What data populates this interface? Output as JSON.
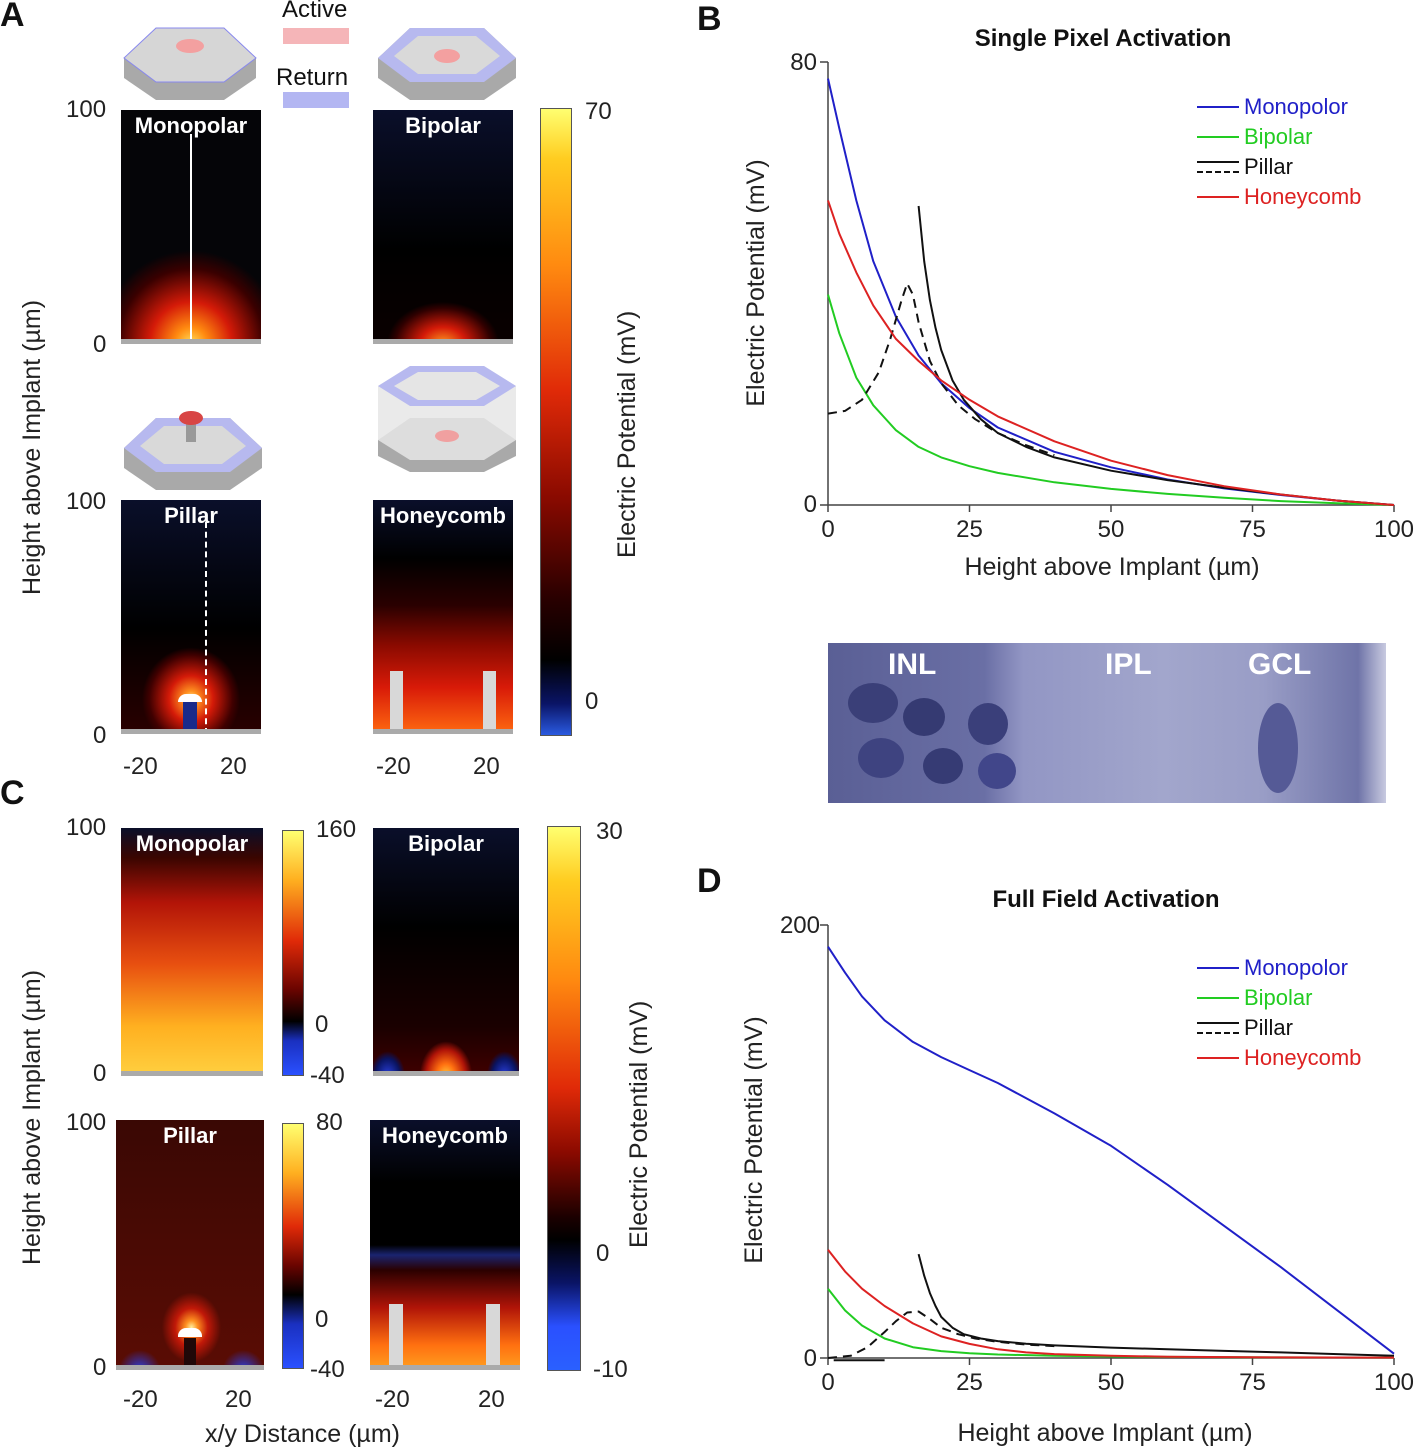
{
  "panels": {
    "a": "A",
    "b": "B",
    "c": "C",
    "d": "D"
  },
  "panel_a": {
    "legend": {
      "active": "Active",
      "return": "Return"
    },
    "heatmaps": [
      "Monopolar",
      "Bipolar",
      "Pillar",
      "Honeycomb"
    ],
    "y_ticks": {
      "top": "100",
      "bottom": "0"
    },
    "x_ticks": [
      "-20",
      "20"
    ],
    "ylabel": "Height above Implant (µm)",
    "colorbar": {
      "max": "70",
      "min": "0",
      "label": "Electric Potential (mV)"
    }
  },
  "panel_c": {
    "heatmaps": [
      "Monopolar",
      "Bipolar",
      "Pillar",
      "Honeycomb"
    ],
    "y_ticks": {
      "top": "100",
      "bottom": "0"
    },
    "x_ticks": [
      "-20",
      "20"
    ],
    "ylabel": "Height above Implant (µm)",
    "xlabel": "x/y Distance (µm)",
    "colorbar_monopolar": {
      "max": "160",
      "zero": "0",
      "min": "-40"
    },
    "colorbar_pillar": {
      "max": "80",
      "zero": "0",
      "min": "-40"
    },
    "colorbar_shared": {
      "max": "30",
      "zero": "0",
      "min": "-10",
      "label": "Electric Potential (mV)"
    }
  },
  "histology": {
    "layers": [
      "INL",
      "IPL",
      "GCL"
    ]
  },
  "colors": {
    "monopolar": "#2020c8",
    "bipolar": "#22cc22",
    "pillar": "#111111",
    "honeycomb": "#dd2222"
  },
  "chart_data": [
    {
      "type": "line",
      "title": "Single Pixel Activation",
      "xlabel": "Height above Implant (µm)",
      "ylabel": "Electric Potential (mV)",
      "xlim": [
        0,
        100
      ],
      "ylim": [
        0,
        80
      ],
      "x_ticks": [
        "0",
        "25",
        "50",
        "75",
        "100"
      ],
      "y_ticks": [
        "0",
        "80"
      ],
      "legend": [
        "Monopolor",
        "Bipolar",
        "Pillar",
        "Honeycomb"
      ],
      "series": [
        {
          "name": "Monopolor",
          "style": "solid",
          "x": [
            0,
            2,
            5,
            8,
            12,
            16,
            20,
            25,
            30,
            40,
            50,
            60,
            70,
            80,
            90,
            100
          ],
          "y": [
            77,
            68,
            55,
            44,
            34,
            27,
            22,
            17.5,
            14,
            9.6,
            6.8,
            4.6,
            3.0,
            1.8,
            0.8,
            0
          ]
        },
        {
          "name": "Bipolar",
          "style": "solid",
          "x": [
            0,
            2,
            5,
            8,
            12,
            16,
            20,
            25,
            30,
            40,
            50,
            60,
            70,
            80,
            90,
            100
          ],
          "y": [
            38,
            31,
            23,
            18,
            13.5,
            10.5,
            8.6,
            7,
            5.8,
            4.1,
            2.9,
            2.0,
            1.3,
            0.7,
            0.3,
            0
          ]
        },
        {
          "name": "Pillar (solid)",
          "style": "solid",
          "x": [
            16,
            17,
            18,
            19,
            20,
            22,
            24,
            27,
            30,
            35,
            40,
            50,
            60,
            70,
            80,
            90,
            100
          ],
          "y": [
            54,
            44,
            37,
            32,
            28,
            22.5,
            19,
            15.5,
            13,
            10.5,
            8.6,
            6.2,
            4.5,
            3.1,
            1.9,
            0.8,
            0
          ]
        },
        {
          "name": "Pillar (dashed)",
          "style": "dashed",
          "x": [
            0,
            3,
            6,
            9,
            11,
            13,
            14,
            15,
            16,
            18,
            20,
            23,
            26,
            30,
            35,
            40
          ],
          "y": [
            16.5,
            17,
            19,
            24,
            30,
            37,
            40,
            38,
            33,
            26,
            22,
            18,
            15.5,
            13,
            10.8,
            9
          ]
        },
        {
          "name": "Honeycomb",
          "style": "solid",
          "x": [
            0,
            2,
            5,
            8,
            12,
            16,
            20,
            25,
            30,
            40,
            50,
            60,
            70,
            80,
            90,
            100
          ],
          "y": [
            55,
            49,
            42,
            36,
            30,
            26,
            22.5,
            19,
            16,
            11.5,
            8,
            5.4,
            3.4,
            1.9,
            0.8,
            0
          ]
        }
      ]
    },
    {
      "type": "line",
      "title": "Full Field Activation",
      "xlabel": "Height above Implant (µm)",
      "ylabel": "Electric Potential (mV)",
      "xlim": [
        0,
        100
      ],
      "ylim": [
        0,
        200
      ],
      "x_ticks": [
        "0",
        "25",
        "50",
        "75",
        "100"
      ],
      "y_ticks": [
        "0",
        "200"
      ],
      "legend": [
        "Monopolor",
        "Bipolar",
        "Pillar",
        "Honeycomb"
      ],
      "series": [
        {
          "name": "Monopolor",
          "style": "solid",
          "x": [
            0,
            3,
            6,
            10,
            15,
            20,
            25,
            30,
            40,
            50,
            60,
            70,
            80,
            90,
            100
          ],
          "y": [
            190,
            178,
            167,
            156,
            146,
            139,
            133,
            127,
            113,
            98,
            80,
            61,
            42,
            22,
            2
          ]
        },
        {
          "name": "Bipolar",
          "style": "solid",
          "x": [
            0,
            3,
            6,
            10,
            15,
            20,
            25,
            30,
            40,
            50,
            60,
            80,
            100
          ],
          "y": [
            32,
            22,
            15,
            9,
            5,
            3.2,
            2.2,
            1.6,
            1.0,
            0.7,
            0.5,
            0.3,
            0.2
          ]
        },
        {
          "name": "Pillar (solid)",
          "style": "solid",
          "x": [
            16,
            17,
            18,
            19,
            20,
            22,
            24,
            27,
            30,
            35,
            40,
            50,
            60,
            70,
            80,
            90,
            100
          ],
          "y": [
            48,
            38,
            30,
            24,
            19,
            14,
            11,
            9,
            7.8,
            6.6,
            5.8,
            4.8,
            4,
            3.3,
            2.6,
            1.8,
            1
          ]
        },
        {
          "name": "Pillar (dashed)",
          "style": "dashed",
          "x": [
            0,
            4,
            7,
            10,
            12,
            14,
            16,
            18,
            20,
            23,
            26,
            30,
            35,
            40
          ],
          "y": [
            0,
            1,
            5,
            12,
            17,
            21,
            21.5,
            18,
            14,
            11,
            9,
            7.5,
            6.2,
            5.5
          ]
        },
        {
          "name": "Pillar (flat)",
          "style": "solid",
          "x": [
            1,
            10
          ],
          "y": [
            -1,
            -1
          ]
        },
        {
          "name": "Honeycomb",
          "style": "solid",
          "x": [
            0,
            3,
            6,
            10,
            15,
            20,
            25,
            30,
            35,
            40,
            50,
            60,
            80,
            100
          ],
          "y": [
            50,
            40,
            32,
            24,
            16,
            10,
            6.5,
            4,
            2.6,
            1.8,
            1.0,
            0.6,
            0.3,
            0.2
          ]
        }
      ]
    }
  ]
}
